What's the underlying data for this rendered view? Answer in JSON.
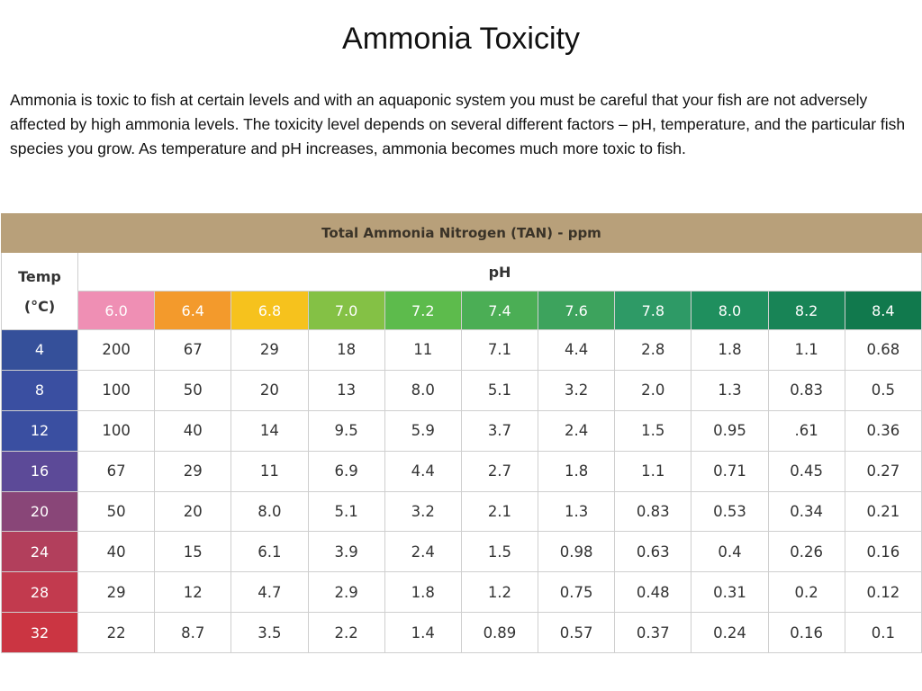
{
  "title": "Ammonia Toxicity",
  "intro": "Ammonia is toxic to fish at certain levels and with an aquaponic system you must be careful  that your fish are not adversely affected by high ammonia levels. The toxicity level depends on several different factors – pH, temperature, and the particular fish species you grow. As temperature and pH increases, ammonia becomes much more toxic to fish.",
  "table": {
    "banner": "Total Ammonia Nitrogen (TAN) - ppm",
    "temp_header_line1": "Temp",
    "temp_header_line2": "(°C)",
    "ph_header": "pH",
    "ph_values": [
      "6.0",
      "6.4",
      "6.8",
      "7.0",
      "7.2",
      "7.4",
      "7.6",
      "7.8",
      "8.0",
      "8.2",
      "8.4"
    ],
    "ph_colors": [
      "#ef8fb4",
      "#f39a2c",
      "#f6c21d",
      "#84c145",
      "#5dbb4c",
      "#4bae55",
      "#3da35d",
      "#2e9a66",
      "#1f8f5e",
      "#188456",
      "#11794d"
    ],
    "temp_colors": [
      "#35509a",
      "#3a4fa1",
      "#3a4fa1",
      "#5c4a98",
      "#894678",
      "#b23f5c",
      "#c23a4e",
      "#cb3542"
    ],
    "rows": [
      {
        "temp": "4",
        "values": [
          "200",
          "67",
          "29",
          "18",
          "11",
          "7.1",
          "4.4",
          "2.8",
          "1.8",
          "1.1",
          "0.68"
        ]
      },
      {
        "temp": "8",
        "values": [
          "100",
          "50",
          "20",
          "13",
          "8.0",
          "5.1",
          "3.2",
          "2.0",
          "1.3",
          "0.83",
          "0.5"
        ]
      },
      {
        "temp": "12",
        "values": [
          "100",
          "40",
          "14",
          "9.5",
          "5.9",
          "3.7",
          "2.4",
          "1.5",
          "0.95",
          ".61",
          "0.36"
        ]
      },
      {
        "temp": "16",
        "values": [
          "67",
          "29",
          "11",
          "6.9",
          "4.4",
          "2.7",
          "1.8",
          "1.1",
          "0.71",
          "0.45",
          "0.27"
        ]
      },
      {
        "temp": "20",
        "values": [
          "50",
          "20",
          "8.0",
          "5.1",
          "3.2",
          "2.1",
          "1.3",
          "0.83",
          "0.53",
          "0.34",
          "0.21"
        ]
      },
      {
        "temp": "24",
        "values": [
          "40",
          "15",
          "6.1",
          "3.9",
          "2.4",
          "1.5",
          "0.98",
          "0.63",
          "0.4",
          "0.26",
          "0.16"
        ]
      },
      {
        "temp": "28",
        "values": [
          "29",
          "12",
          "4.7",
          "2.9",
          "1.8",
          "1.2",
          "0.75",
          "0.48",
          "0.31",
          "0.2",
          "0.12"
        ]
      },
      {
        "temp": "32",
        "values": [
          "22",
          "8.7",
          "3.5",
          "2.2",
          "1.4",
          "0.89",
          "0.57",
          "0.37",
          "0.24",
          "0.16",
          "0.1"
        ]
      }
    ]
  }
}
